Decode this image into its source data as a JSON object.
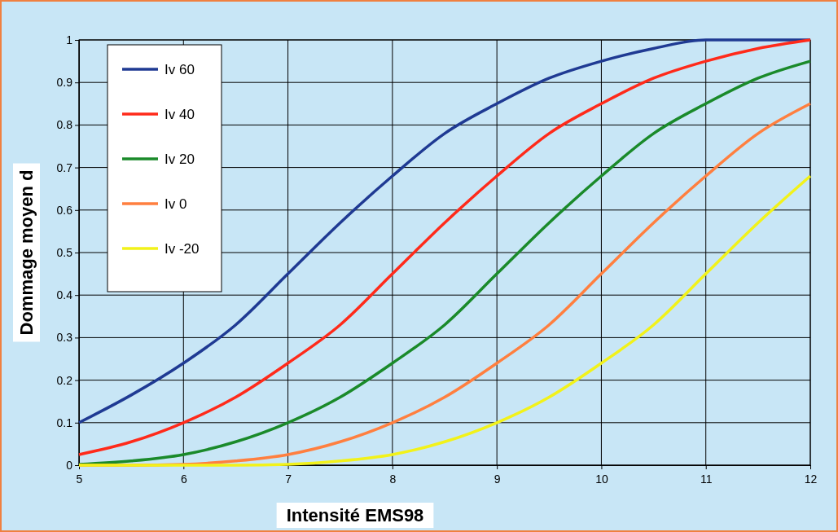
{
  "chart_data": {
    "type": "line",
    "xlabel": "Intensité EMS98",
    "ylabel": "Dommage moyen d",
    "x": [
      5,
      5.5,
      6,
      6.5,
      7,
      7.5,
      8,
      8.5,
      9,
      9.5,
      10,
      10.5,
      11,
      11.5,
      12
    ],
    "series": [
      {
        "name": "Iv 60",
        "color": "#1f3a93",
        "values": [
          0.1,
          0.165,
          0.24,
          0.33,
          0.45,
          0.57,
          0.68,
          0.78,
          0.85,
          0.91,
          0.95,
          0.98,
          1.0,
          1.0,
          1.0
        ]
      },
      {
        "name": "Iv 40",
        "color": "#ff2a1a",
        "values": [
          0.025,
          0.055,
          0.1,
          0.16,
          0.24,
          0.33,
          0.45,
          0.57,
          0.68,
          0.78,
          0.85,
          0.91,
          0.95,
          0.98,
          1.0
        ]
      },
      {
        "name": "Iv 20",
        "color": "#1a8a2a",
        "values": [
          0.002,
          0.01,
          0.025,
          0.055,
          0.1,
          0.16,
          0.24,
          0.33,
          0.45,
          0.57,
          0.68,
          0.78,
          0.85,
          0.91,
          0.95
        ]
      },
      {
        "name": "Iv 0",
        "color": "#ff7f3f",
        "values": [
          0,
          0,
          0.002,
          0.01,
          0.025,
          0.055,
          0.1,
          0.16,
          0.24,
          0.33,
          0.45,
          0.57,
          0.68,
          0.78,
          0.85
        ]
      },
      {
        "name": "Iv -20",
        "color": "#f2f21a",
        "values": [
          0,
          0,
          0,
          0,
          0.002,
          0.01,
          0.025,
          0.055,
          0.1,
          0.16,
          0.24,
          0.33,
          0.45,
          0.57,
          0.68
        ]
      }
    ],
    "xlim": [
      5,
      12
    ],
    "xticks": [
      5,
      6,
      7,
      8,
      9,
      10,
      11,
      12
    ],
    "ylim": [
      0,
      1
    ],
    "yticks": [
      0,
      0.1,
      0.2,
      0.3,
      0.4,
      0.5,
      0.6,
      0.7,
      0.8,
      0.9,
      1
    ],
    "grid": true,
    "legend": "top left",
    "marker": "none",
    "line_style": "solid"
  }
}
